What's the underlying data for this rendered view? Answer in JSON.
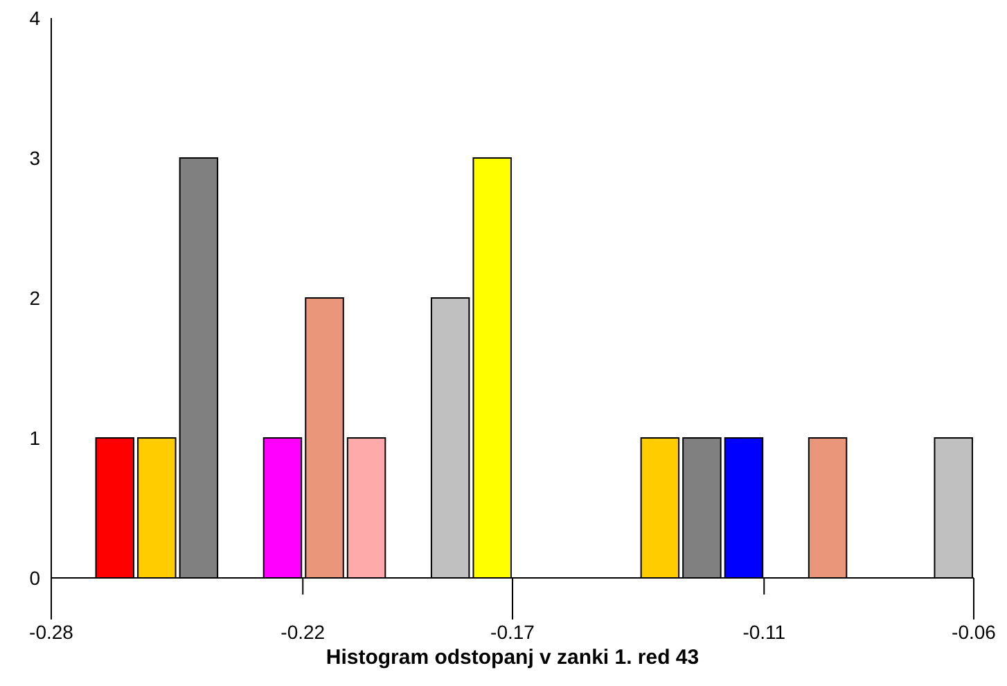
{
  "chart_data": {
    "type": "histogram",
    "xlabel": "Histogram odstopanj v zanki 1. red 43",
    "bins": [
      -0.27,
      -0.26,
      -0.25,
      -0.24,
      -0.23,
      -0.22,
      -0.21,
      -0.2,
      -0.19,
      -0.18,
      -0.17,
      -0.16,
      -0.15,
      -0.14,
      -0.13,
      -0.12,
      -0.11,
      -0.1,
      -0.09,
      -0.08,
      -0.07,
      -0.06
    ],
    "values": [
      1,
      1,
      3,
      0,
      1,
      2,
      1,
      0,
      2,
      3,
      0,
      0,
      0,
      1,
      1,
      1,
      0,
      1,
      0,
      0,
      1
    ],
    "colors": [
      "#ff0000",
      "#ffcc00",
      "#808080",
      null,
      "#ff00ff",
      "#e9967a",
      "#ffaaaa",
      null,
      "#c0c0c0",
      "#ffff00",
      null,
      null,
      null,
      "#ffcc00",
      "#808080",
      "#0000ff",
      null,
      "#e9967a",
      null,
      null,
      "#c0c0c0"
    ],
    "xlim": [
      -0.28,
      -0.06
    ],
    "xticks": [
      -0.28,
      -0.22,
      -0.17,
      -0.11,
      -0.06
    ],
    "ylim": [
      0,
      4
    ],
    "yticks": [
      0,
      1,
      2,
      3,
      4
    ]
  }
}
